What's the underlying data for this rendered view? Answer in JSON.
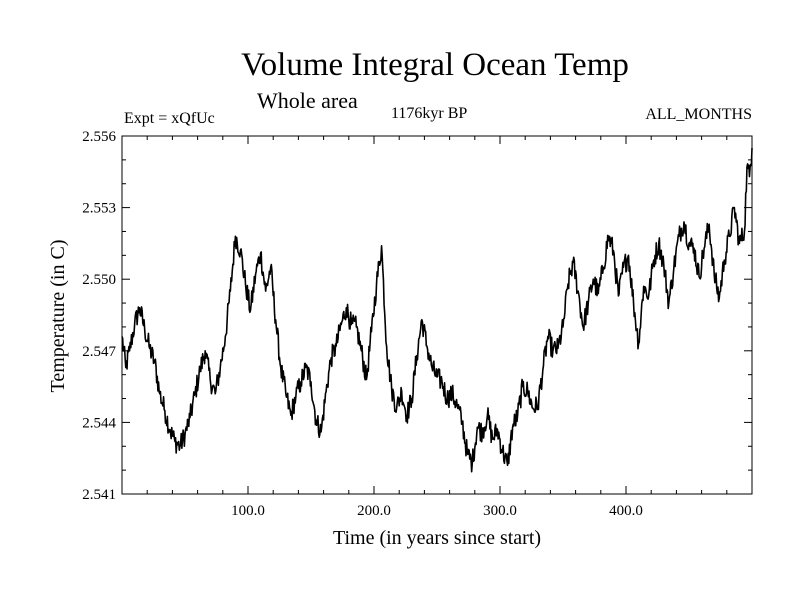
{
  "chart_data": {
    "type": "line",
    "title": "Volume Integral Ocean Temp",
    "subtitle": "Whole area",
    "left_label": "Expt = xQfUc",
    "center_label": "1176kyr BP",
    "right_label": "ALL_MONTHS",
    "xlabel": "Time (in years since start)",
    "ylabel": "Temperature (in C)",
    "xlim": [
      0,
      500
    ],
    "ylim": [
      2.541,
      2.556
    ],
    "x_ticks": [
      100,
      200,
      300,
      400
    ],
    "x_tick_labels": [
      "100.0",
      "200.0",
      "300.0",
      "400.0"
    ],
    "y_ticks": [
      2.541,
      2.544,
      2.547,
      2.55,
      2.553,
      2.556
    ],
    "y_tick_labels": [
      "2.541",
      "2.544",
      "2.547",
      "2.550",
      "2.553",
      "2.556"
    ],
    "grid": false,
    "series": [
      {
        "name": "Volume Integral Ocean Temp",
        "color": "#000000",
        "anchors": [
          [
            0,
            2.5476
          ],
          [
            3,
            2.5463
          ],
          [
            6,
            2.547
          ],
          [
            10,
            2.5481
          ],
          [
            14,
            2.5488
          ],
          [
            18,
            2.5479
          ],
          [
            22,
            2.5471
          ],
          [
            26,
            2.5465
          ],
          [
            30,
            2.5452
          ],
          [
            34,
            2.5445
          ],
          [
            38,
            2.5437
          ],
          [
            42,
            2.5432
          ],
          [
            46,
            2.543
          ],
          [
            50,
            2.5435
          ],
          [
            54,
            2.5442
          ],
          [
            58,
            2.5452
          ],
          [
            62,
            2.5462
          ],
          [
            66,
            2.547
          ],
          [
            70,
            2.5458
          ],
          [
            74,
            2.5452
          ],
          [
            78,
            2.5463
          ],
          [
            82,
            2.5476
          ],
          [
            86,
            2.5495
          ],
          [
            90,
            2.5518
          ],
          [
            94,
            2.5512
          ],
          [
            98,
            2.5498
          ],
          [
            102,
            2.5487
          ],
          [
            106,
            2.5502
          ],
          [
            110,
            2.5511
          ],
          [
            114,
            2.5495
          ],
          [
            118,
            2.5505
          ],
          [
            122,
            2.5483
          ],
          [
            126,
            2.5463
          ],
          [
            130,
            2.5452
          ],
          [
            134,
            2.5443
          ],
          [
            138,
            2.5451
          ],
          [
            142,
            2.5457
          ],
          [
            146,
            2.5463
          ],
          [
            150,
            2.5457
          ],
          [
            154,
            2.5441
          ],
          [
            158,
            2.5436
          ],
          [
            162,
            2.5453
          ],
          [
            166,
            2.5467
          ],
          [
            170,
            2.5472
          ],
          [
            174,
            2.5481
          ],
          [
            178,
            2.5488
          ],
          [
            182,
            2.5481
          ],
          [
            186,
            2.548
          ],
          [
            190,
            2.547
          ],
          [
            194,
            2.5458
          ],
          [
            198,
            2.5478
          ],
          [
            202,
            2.5498
          ],
          [
            206,
            2.5514
          ],
          [
            210,
            2.5472
          ],
          [
            214,
            2.5454
          ],
          [
            218,
            2.5446
          ],
          [
            222,
            2.5453
          ],
          [
            226,
            2.5443
          ],
          [
            230,
            2.545
          ],
          [
            234,
            2.5468
          ],
          [
            238,
            2.5483
          ],
          [
            242,
            2.5472
          ],
          [
            246,
            2.5463
          ],
          [
            250,
            2.5459
          ],
          [
            254,
            2.5457
          ],
          [
            258,
            2.545
          ],
          [
            262,
            2.5452
          ],
          [
            266,
            2.5447
          ],
          [
            270,
            2.544
          ],
          [
            274,
            2.5427
          ],
          [
            278,
            2.5423
          ],
          [
            282,
            2.5438
          ],
          [
            286,
            2.5436
          ],
          [
            290,
            2.5443
          ],
          [
            294,
            2.5433
          ],
          [
            298,
            2.5437
          ],
          [
            302,
            2.5428
          ],
          [
            306,
            2.5422
          ],
          [
            310,
            2.5438
          ],
          [
            314,
            2.5443
          ],
          [
            318,
            2.5455
          ],
          [
            322,
            2.5453
          ],
          [
            326,
            2.5446
          ],
          [
            330,
            2.5447
          ],
          [
            334,
            2.5462
          ],
          [
            338,
            2.5476
          ],
          [
            342,
            2.547
          ],
          [
            346,
            2.5471
          ],
          [
            350,
            2.548
          ],
          [
            354,
            2.5498
          ],
          [
            358,
            2.5507
          ],
          [
            362,
            2.5495
          ],
          [
            366,
            2.548
          ],
          [
            370,
            2.549
          ],
          [
            374,
            2.55
          ],
          [
            378,
            2.5494
          ],
          [
            382,
            2.5505
          ],
          [
            386,
            2.5518
          ],
          [
            390,
            2.5512
          ],
          [
            394,
            2.5493
          ],
          [
            398,
            2.5505
          ],
          [
            402,
            2.551
          ],
          [
            406,
            2.549
          ],
          [
            410,
            2.5473
          ],
          [
            414,
            2.5497
          ],
          [
            418,
            2.5493
          ],
          [
            422,
            2.5508
          ],
          [
            426,
            2.5515
          ],
          [
            430,
            2.5506
          ],
          [
            434,
            2.549
          ],
          [
            438,
            2.5505
          ],
          [
            442,
            2.5518
          ],
          [
            446,
            2.5524
          ],
          [
            450,
            2.5515
          ],
          [
            454,
            2.5513
          ],
          [
            458,
            2.5501
          ],
          [
            462,
            2.5513
          ],
          [
            466,
            2.5523
          ],
          [
            470,
            2.5502
          ],
          [
            474,
            2.5492
          ],
          [
            478,
            2.5508
          ],
          [
            482,
            2.5518
          ],
          [
            486,
            2.553
          ],
          [
            490,
            2.5515
          ],
          [
            494,
            2.552
          ],
          [
            496,
            2.5547
          ],
          [
            498,
            2.5543
          ],
          [
            500,
            2.5555
          ]
        ]
      }
    ]
  }
}
